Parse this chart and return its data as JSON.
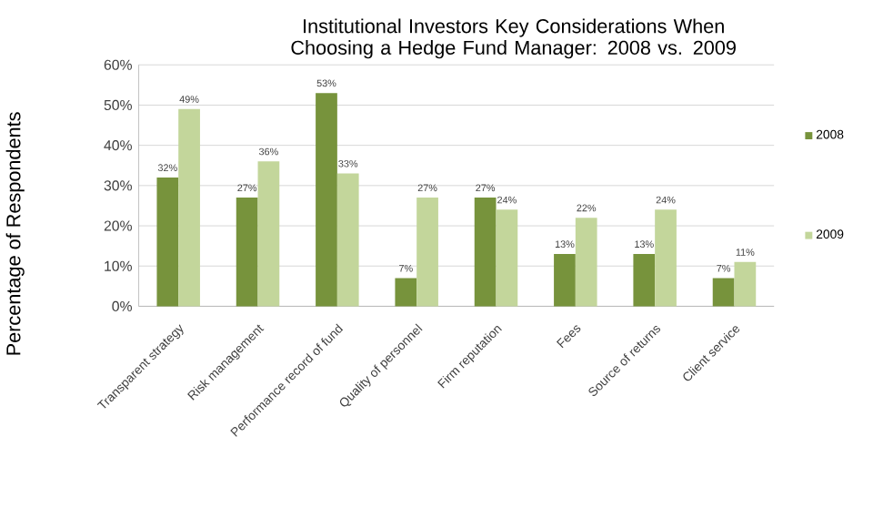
{
  "chart_data": {
    "type": "bar",
    "title": "Institutional Investors Key Considerations When Choosing a Hedge Fund Manager: 2008 vs. 2009",
    "ylabel": "Percentage of Respondents",
    "categories": [
      "Transparent strategy",
      "Risk management",
      "Performance record of fund",
      "Quality of personnel",
      "Firm reputation",
      "Fees",
      "Source of returns",
      "Client service"
    ],
    "series": [
      {
        "name": "2008",
        "color": "#77933c",
        "values": [
          32,
          27,
          53,
          7,
          27,
          13,
          13,
          7
        ],
        "value_labels": [
          "32%",
          "27%",
          "53%",
          "7%",
          "27%",
          "13%",
          "13%",
          "7%"
        ]
      },
      {
        "name": "2009",
        "color": "#c3d69b",
        "values": [
          49,
          36,
          33,
          27,
          24,
          22,
          24,
          11
        ],
        "value_labels": [
          "49%",
          "36%",
          "33%",
          "27%",
          "24%",
          "22%",
          "24%",
          "11%"
        ]
      }
    ],
    "ylim": [
      0,
      60
    ],
    "yticks": [
      {
        "value": 0,
        "label": "0%"
      },
      {
        "value": 10,
        "label": "10%"
      },
      {
        "value": 20,
        "label": "20%"
      },
      {
        "value": 30,
        "label": "30%"
      },
      {
        "value": 40,
        "label": "40%"
      },
      {
        "value": 50,
        "label": "50%"
      },
      {
        "value": 60,
        "label": "60%"
      }
    ],
    "grid": "y",
    "legend": "right"
  }
}
